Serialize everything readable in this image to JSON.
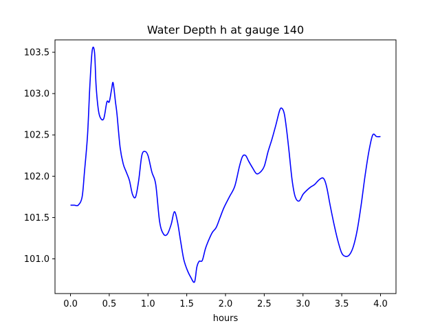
{
  "chart_data": {
    "type": "line",
    "title": "Water Depth h at gauge 140",
    "xlabel": "hours",
    "ylabel": "",
    "xlim": [
      -0.2,
      4.2
    ],
    "ylim": [
      100.58,
      103.65
    ],
    "x_ticks": [
      0.0,
      0.5,
      1.0,
      1.5,
      2.0,
      2.5,
      3.0,
      3.5,
      4.0
    ],
    "x_tick_labels": [
      "0.0",
      "0.5",
      "1.0",
      "1.5",
      "2.0",
      "2.5",
      "3.0",
      "3.5",
      "4.0"
    ],
    "y_ticks": [
      101.0,
      101.5,
      102.0,
      102.5,
      103.0,
      103.5
    ],
    "y_tick_labels": [
      "101.0",
      "101.5",
      "102.0",
      "102.5",
      "103.0",
      "103.5"
    ],
    "grid": false,
    "series": [
      {
        "color": "#0000ff",
        "x": [
          0.0,
          0.05,
          0.1,
          0.15,
          0.18,
          0.22,
          0.25,
          0.28,
          0.31,
          0.33,
          0.36,
          0.39,
          0.43,
          0.47,
          0.5,
          0.53,
          0.55,
          0.58,
          0.6,
          0.64,
          0.68,
          0.72,
          0.76,
          0.8,
          0.84,
          0.88,
          0.92,
          0.96,
          1.0,
          1.05,
          1.1,
          1.15,
          1.2,
          1.25,
          1.3,
          1.34,
          1.38,
          1.42,
          1.46,
          1.5,
          1.55,
          1.6,
          1.63,
          1.66,
          1.7,
          1.74,
          1.78,
          1.83,
          1.88,
          1.93,
          1.98,
          2.05,
          2.12,
          2.18,
          2.22,
          2.26,
          2.3,
          2.35,
          2.4,
          2.45,
          2.5,
          2.55,
          2.6,
          2.65,
          2.7,
          2.73,
          2.76,
          2.79,
          2.82,
          2.86,
          2.9,
          2.95,
          3.0,
          3.05,
          3.1,
          3.15,
          3.2,
          3.25,
          3.28,
          3.31,
          3.35,
          3.4,
          3.45,
          3.5,
          3.55,
          3.6,
          3.65,
          3.7,
          3.75,
          3.8,
          3.85,
          3.9,
          3.95,
          4.0
        ],
        "values": [
          101.65,
          101.65,
          101.65,
          101.75,
          102.05,
          102.5,
          103.1,
          103.52,
          103.5,
          103.1,
          102.8,
          102.7,
          102.7,
          102.9,
          102.9,
          103.05,
          103.13,
          102.9,
          102.75,
          102.35,
          102.15,
          102.05,
          101.95,
          101.78,
          101.75,
          101.95,
          102.25,
          102.3,
          102.25,
          102.05,
          101.9,
          101.45,
          101.3,
          101.3,
          101.42,
          101.57,
          101.45,
          101.22,
          101.0,
          100.88,
          100.78,
          100.72,
          100.9,
          100.97,
          100.98,
          101.12,
          101.22,
          101.32,
          101.38,
          101.5,
          101.62,
          101.75,
          101.88,
          102.12,
          102.24,
          102.25,
          102.18,
          102.1,
          102.03,
          102.05,
          102.12,
          102.3,
          102.45,
          102.62,
          102.8,
          102.82,
          102.75,
          102.55,
          102.3,
          101.95,
          101.75,
          101.7,
          101.78,
          101.83,
          101.87,
          101.9,
          101.95,
          101.98,
          101.95,
          101.85,
          101.65,
          101.42,
          101.22,
          101.07,
          101.03,
          101.05,
          101.15,
          101.35,
          101.65,
          102.0,
          102.3,
          102.5,
          102.48,
          102.48
        ]
      }
    ]
  }
}
